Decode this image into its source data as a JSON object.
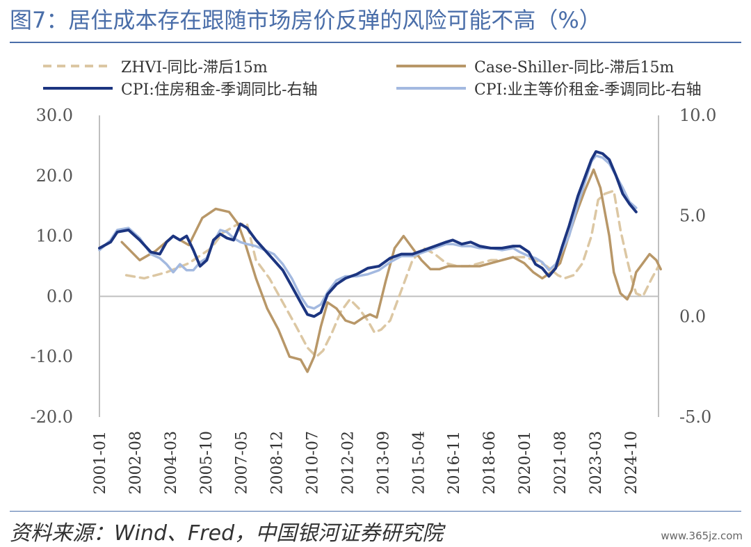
{
  "title": "图7：居住成本存在跟随市场房价反弹的风险可能不高（%）",
  "source": "资料来源：Wind、Fred，中国银河证券研究院",
  "watermark": "www.365jz.com",
  "chart_data": {
    "type": "line",
    "title": "图7：居住成本存在跟随市场房价反弹的风险可能不高（%）",
    "xlabel": "",
    "ylabel": "",
    "x_ticks": [
      "2001-01",
      "2002-08",
      "2004-03",
      "2005-10",
      "2007-05",
      "2008-12",
      "2010-07",
      "2012-02",
      "2013-09",
      "2015-04",
      "2016-11",
      "2018-06",
      "2020-01",
      "2021-08",
      "2023-03",
      "2024-10"
    ],
    "ylim_left": [
      -20,
      30
    ],
    "ylim_right": [
      -5,
      10
    ],
    "yticks_left": [
      "30.0",
      "20.0",
      "10.0",
      "0.0",
      "-10.0",
      "-20.0"
    ],
    "yticks_right": [
      "10.0",
      "5.0",
      "0.0",
      "-5.0"
    ],
    "legend_position": "top",
    "grid": false,
    "series": [
      {
        "name": "ZHVI-同比-滞后15m",
        "axis": "left",
        "color": "#dcc7a3",
        "style": "dashed",
        "x": [
          2002.2,
          2003.0,
          2004.0,
          2005.0,
          2006.0,
          2006.5,
          2007.2,
          2007.6,
          2008.0,
          2008.6,
          2009.2,
          2009.8,
          2010.3,
          2010.7,
          2011.0,
          2011.4,
          2011.8,
          2012.2,
          2012.6,
          2013.0,
          2013.3,
          2013.6,
          2014.0,
          2014.5,
          2015.0,
          2015.5,
          2016.0,
          2016.5,
          2017.0,
          2017.5,
          2018.0,
          2018.5,
          2019.0,
          2019.5,
          2020.0,
          2020.5,
          2021.0,
          2021.5,
          2021.8,
          2022.2,
          2022.6,
          2023.0,
          2023.3,
          2023.6,
          2024.0,
          2024.3,
          2024.6,
          2024.8,
          2025.0,
          2025.3,
          2025.7,
          2026.0
        ],
        "y": [
          3.5,
          3.0,
          4.0,
          5.5,
          8.0,
          10.5,
          12.0,
          12.0,
          6.0,
          3.0,
          -1.0,
          -5.0,
          -8.5,
          -10.0,
          -9.0,
          -6.0,
          -2.5,
          -0.5,
          -2.0,
          -4.0,
          -6.0,
          -5.5,
          -4.0,
          1.0,
          6.0,
          8.0,
          7.0,
          5.5,
          5.0,
          5.0,
          5.5,
          6.0,
          6.0,
          6.5,
          6.5,
          6.0,
          5.0,
          3.5,
          3.0,
          3.5,
          5.5,
          10.0,
          16.0,
          17.0,
          17.5,
          11.0,
          6.0,
          3.0,
          0.5,
          0.0,
          3.0,
          5.0
        ]
      },
      {
        "name": "Case-Shiller-同比-滞后15m",
        "axis": "left",
        "color": "#b89768",
        "style": "solid",
        "x": [
          2002.0,
          2002.8,
          2003.5,
          2004.3,
          2005.0,
          2005.6,
          2006.2,
          2006.8,
          2007.2,
          2007.5,
          2008.0,
          2008.5,
          2009.0,
          2009.5,
          2010.0,
          2010.3,
          2010.6,
          2010.9,
          2011.2,
          2011.6,
          2012.0,
          2012.4,
          2012.8,
          2013.1,
          2013.4,
          2013.8,
          2014.2,
          2014.6,
          2015.0,
          2015.4,
          2015.8,
          2016.2,
          2016.6,
          2017.0,
          2017.5,
          2018.0,
          2018.5,
          2019.0,
          2019.5,
          2020.0,
          2020.4,
          2020.8,
          2021.2,
          2021.6,
          2021.9,
          2022.3,
          2022.7,
          2023.1,
          2023.4,
          2023.8,
          2024.0,
          2024.3,
          2024.6,
          2024.8,
          2025.0,
          2025.3,
          2025.6,
          2025.9,
          2026.1
        ],
        "y": [
          9.0,
          6.0,
          7.5,
          10.0,
          8.5,
          13.0,
          14.5,
          14.0,
          12.0,
          9.0,
          3.0,
          -2.0,
          -5.5,
          -10.0,
          -10.5,
          -12.5,
          -10.0,
          -5.0,
          -1.0,
          -2.0,
          -4.0,
          -4.5,
          -3.5,
          -3.0,
          -3.5,
          2.5,
          8.0,
          10.0,
          8.0,
          6.0,
          4.5,
          4.5,
          5.0,
          5.0,
          5.0,
          5.0,
          5.5,
          6.0,
          6.5,
          5.5,
          4.0,
          3.0,
          4.0,
          5.5,
          9.0,
          13.5,
          17.5,
          21.0,
          18.0,
          10.0,
          4.0,
          0.5,
          -0.5,
          1.0,
          4.0,
          5.5,
          7.0,
          6.0,
          4.5
        ]
      },
      {
        "name": "CPI:住房租金-季调同比-右轴",
        "axis": "right",
        "color": "#1c3580",
        "style": "solid",
        "x": [
          2001.0,
          2001.5,
          2001.8,
          2002.3,
          2002.8,
          2003.3,
          2003.7,
          2004.0,
          2004.3,
          2004.6,
          2004.9,
          2005.2,
          2005.5,
          2005.8,
          2006.1,
          2006.4,
          2006.7,
          2007.0,
          2007.3,
          2007.6,
          2008.0,
          2008.4,
          2008.8,
          2009.2,
          2009.6,
          2010.0,
          2010.3,
          2010.6,
          2010.9,
          2011.2,
          2011.6,
          2012.0,
          2012.5,
          2013.0,
          2013.5,
          2014.0,
          2014.5,
          2015.0,
          2015.5,
          2016.0,
          2016.5,
          2016.8,
          2017.2,
          2017.6,
          2018.0,
          2018.5,
          2019.0,
          2019.5,
          2019.8,
          2020.2,
          2020.5,
          2020.8,
          2021.1,
          2021.4,
          2021.7,
          2022.0,
          2022.4,
          2022.8,
          2023.0,
          2023.2,
          2023.5,
          2023.8,
          2024.1,
          2024.4,
          2024.7,
          2025.0
        ],
        "y": [
          3.4,
          3.7,
          4.2,
          4.3,
          3.8,
          3.2,
          3.1,
          3.7,
          4.0,
          3.8,
          4.0,
          3.3,
          2.5,
          2.8,
          3.8,
          4.1,
          3.9,
          3.8,
          4.6,
          4.4,
          3.8,
          3.3,
          2.8,
          2.3,
          1.5,
          0.7,
          0.1,
          0.0,
          0.2,
          1.1,
          1.6,
          1.9,
          2.1,
          2.4,
          2.5,
          2.9,
          3.1,
          3.1,
          3.3,
          3.5,
          3.7,
          3.8,
          3.6,
          3.7,
          3.5,
          3.4,
          3.4,
          3.5,
          3.5,
          3.2,
          2.6,
          2.4,
          2.0,
          2.4,
          3.5,
          4.5,
          6.0,
          7.2,
          7.8,
          8.2,
          8.1,
          7.8,
          7.0,
          6.1,
          5.6,
          5.2
        ]
      },
      {
        "name": "CPI:业主等价租金-季调同比-右轴",
        "axis": "right",
        "color": "#a3b9e0",
        "style": "solid",
        "x": [
          2001.0,
          2001.5,
          2001.8,
          2002.3,
          2002.8,
          2003.3,
          2003.7,
          2004.0,
          2004.3,
          2004.6,
          2004.9,
          2005.2,
          2005.5,
          2005.8,
          2006.1,
          2006.4,
          2006.7,
          2007.0,
          2007.3,
          2007.6,
          2008.0,
          2008.4,
          2008.8,
          2009.2,
          2009.6,
          2010.0,
          2010.3,
          2010.6,
          2010.9,
          2011.2,
          2011.6,
          2012.0,
          2012.5,
          2013.0,
          2013.5,
          2014.0,
          2014.5,
          2015.0,
          2015.5,
          2016.0,
          2016.5,
          2016.8,
          2017.2,
          2017.6,
          2018.0,
          2018.5,
          2019.0,
          2019.5,
          2019.8,
          2020.2,
          2020.5,
          2020.8,
          2021.1,
          2021.4,
          2021.7,
          2022.0,
          2022.4,
          2022.8,
          2023.0,
          2023.2,
          2023.5,
          2023.8,
          2024.1,
          2024.4,
          2024.7,
          2025.0
        ],
        "y": [
          3.3,
          3.8,
          4.3,
          4.4,
          3.9,
          3.1,
          2.9,
          2.6,
          2.2,
          2.6,
          2.3,
          2.3,
          2.7,
          2.9,
          3.7,
          4.3,
          4.2,
          3.9,
          3.7,
          3.6,
          3.5,
          3.3,
          3.1,
          2.6,
          1.9,
          1.0,
          0.5,
          0.4,
          0.6,
          1.2,
          1.8,
          2.0,
          2.0,
          2.1,
          2.3,
          2.7,
          3.0,
          3.0,
          3.2,
          3.4,
          3.6,
          3.6,
          3.5,
          3.5,
          3.4,
          3.4,
          3.3,
          3.4,
          3.2,
          3.0,
          2.9,
          2.7,
          2.3,
          2.6,
          3.3,
          4.0,
          5.6,
          7.0,
          7.7,
          8.0,
          7.9,
          7.6,
          7.0,
          6.4,
          5.7,
          5.4
        ]
      }
    ]
  }
}
